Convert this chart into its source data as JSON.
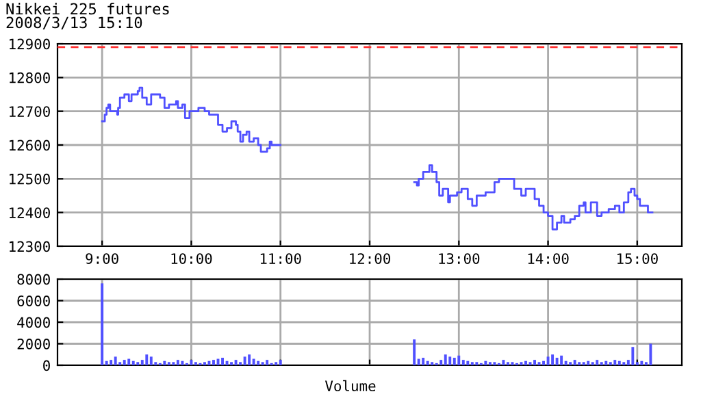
{
  "chart_data": [
    {
      "type": "step",
      "title": "Nikkei 225 futures",
      "subtitle": "2008/3/13 15:10",
      "x": [
        9.0,
        9.03,
        9.05,
        9.07,
        9.09,
        9.15,
        9.17,
        9.18,
        9.2,
        9.25,
        9.3,
        9.33,
        9.4,
        9.42,
        9.45,
        9.5,
        9.55,
        9.65,
        9.7,
        9.75,
        9.83,
        9.85,
        9.9,
        9.93,
        9.98,
        10.05,
        10.08,
        10.15,
        10.2,
        10.25,
        10.3,
        10.35,
        10.4,
        10.45,
        10.5,
        10.52,
        10.55,
        10.58,
        10.62,
        10.65,
        10.7,
        10.75,
        10.78,
        10.85,
        10.88,
        10.9,
        11.0,
        12.0,
        12.5,
        12.53,
        12.55,
        12.6,
        12.67,
        12.7,
        12.75,
        12.78,
        12.82,
        12.88,
        12.9,
        12.98,
        13.03,
        13.1,
        13.15,
        13.2,
        13.3,
        13.4,
        13.45,
        13.6,
        13.62,
        13.7,
        13.75,
        13.85,
        13.9,
        13.95,
        14.0,
        14.05,
        14.1,
        14.15,
        14.18,
        14.25,
        14.3,
        14.35,
        14.4,
        14.42,
        14.48,
        14.55,
        14.6,
        14.68,
        14.75,
        14.8,
        14.85,
        14.9,
        14.93,
        14.97,
        15.0,
        15.03,
        15.08,
        15.12,
        15.17
      ],
      "series": [
        {
          "color": "#5050ff",
          "values": [
            12670,
            12690,
            12710,
            12720,
            12700,
            12700,
            12690,
            12710,
            12740,
            12750,
            12730,
            12750,
            12760,
            12770,
            12740,
            12720,
            12750,
            12740,
            12710,
            12720,
            12730,
            12710,
            12720,
            12680,
            12700,
            12700,
            12710,
            12700,
            12690,
            12690,
            12660,
            12640,
            12650,
            12670,
            12660,
            12640,
            12610,
            12630,
            12640,
            12610,
            12620,
            12600,
            12580,
            12590,
            12610,
            12600,
            12600,
            null,
            12490,
            12480,
            12500,
            12520,
            12540,
            12520,
            12490,
            12450,
            12470,
            12430,
            12450,
            12460,
            12470,
            12440,
            12420,
            12450,
            12460,
            12490,
            12500,
            12500,
            12470,
            12450,
            12470,
            12440,
            12420,
            12400,
            12390,
            12350,
            12370,
            12390,
            12370,
            12380,
            12390,
            12420,
            12430,
            12400,
            12430,
            12390,
            12400,
            12410,
            12420,
            12400,
            12430,
            12460,
            12470,
            12450,
            12440,
            12420,
            12420,
            12400,
            12400
          ]
        }
      ],
      "xlim": [
        8.5,
        15.5
      ],
      "ylim": [
        12300,
        12900
      ],
      "xticks": [
        {
          "value": 9,
          "label": "9:00"
        },
        {
          "value": 10,
          "label": "10:00"
        },
        {
          "value": 11,
          "label": "11:00"
        },
        {
          "value": 12,
          "label": "12:00"
        },
        {
          "value": 13,
          "label": "13:00"
        },
        {
          "value": 14,
          "label": "14:00"
        },
        {
          "value": 15,
          "label": "15:00"
        }
      ],
      "yticks": [
        12300,
        12400,
        12500,
        12600,
        12700,
        12800,
        12900
      ],
      "ref_lines": [
        {
          "axis": "y",
          "value": 12890,
          "color": "#ff3030",
          "line_style": "dashed"
        }
      ],
      "grid": true
    },
    {
      "type": "bar",
      "xlabel": "Volume",
      "x": [
        9.0,
        9.05,
        9.1,
        9.15,
        9.2,
        9.25,
        9.3,
        9.35,
        9.4,
        9.45,
        9.5,
        9.55,
        9.6,
        9.65,
        9.7,
        9.75,
        9.8,
        9.85,
        9.9,
        9.95,
        10.0,
        10.05,
        10.1,
        10.15,
        10.2,
        10.25,
        10.3,
        10.35,
        10.4,
        10.45,
        10.5,
        10.55,
        10.6,
        10.65,
        10.7,
        10.75,
        10.8,
        10.85,
        10.9,
        10.95,
        11.0,
        12.5,
        12.55,
        12.6,
        12.65,
        12.7,
        12.75,
        12.8,
        12.85,
        12.9,
        12.95,
        13.0,
        13.05,
        13.1,
        13.15,
        13.2,
        13.25,
        13.3,
        13.35,
        13.4,
        13.45,
        13.5,
        13.55,
        13.6,
        13.65,
        13.7,
        13.75,
        13.8,
        13.85,
        13.9,
        13.95,
        14.0,
        14.05,
        14.1,
        14.15,
        14.2,
        14.25,
        14.3,
        14.35,
        14.4,
        14.45,
        14.5,
        14.55,
        14.6,
        14.65,
        14.7,
        14.75,
        14.8,
        14.85,
        14.9,
        14.95,
        15.0,
        15.05,
        15.1,
        15.15
      ],
      "series": [
        {
          "color": "#5050ff",
          "values": [
            7600,
            400,
            500,
            800,
            300,
            500,
            600,
            400,
            300,
            500,
            1000,
            800,
            300,
            200,
            400,
            300,
            300,
            500,
            400,
            200,
            500,
            300,
            200,
            300,
            400,
            500,
            600,
            700,
            400,
            300,
            500,
            300,
            800,
            1000,
            600,
            400,
            300,
            500,
            200,
            300,
            500,
            2400,
            600,
            700,
            400,
            300,
            200,
            500,
            1000,
            800,
            700,
            900,
            500,
            400,
            300,
            300,
            200,
            400,
            300,
            300,
            200,
            500,
            300,
            300,
            200,
            300,
            400,
            300,
            500,
            300,
            400,
            800,
            1000,
            700,
            900,
            400,
            300,
            500,
            300,
            300,
            400,
            300,
            500,
            300,
            400,
            300,
            500,
            400,
            300,
            500,
            1700,
            300,
            400,
            300,
            2000
          ]
        }
      ],
      "xlim": [
        8.5,
        15.5
      ],
      "ylim": [
        0,
        8000
      ],
      "yticks": [
        0,
        2000,
        4000,
        6000,
        8000
      ],
      "tick_labels": "y",
      "grid": true
    }
  ]
}
